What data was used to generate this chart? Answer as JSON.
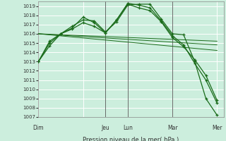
{
  "xlabel": "Pression niveau de la mer( hPa )",
  "ylim": [
    1007,
    1019.5
  ],
  "yticks": [
    1007,
    1008,
    1009,
    1010,
    1011,
    1012,
    1013,
    1014,
    1015,
    1016,
    1017,
    1018,
    1019
  ],
  "day_labels": [
    "Dim",
    "Jeu",
    "Lun",
    "Mar",
    "Mer"
  ],
  "day_positions": [
    0.0,
    3.0,
    4.0,
    6.0,
    8.0
  ],
  "bg_color": "#cceedd",
  "grid_color": "#ffffff",
  "line_color": "#1a6b1a",
  "series1_x": [
    0,
    0.5,
    1.0,
    1.5,
    2.0,
    2.5,
    3.0,
    3.5,
    4.0,
    4.5,
    5.0,
    5.5,
    6.0,
    6.5,
    7.0,
    7.5,
    8.0
  ],
  "series1_y": [
    1013.0,
    1014.7,
    1016.0,
    1016.8,
    1017.5,
    1017.4,
    1016.2,
    1017.3,
    1019.1,
    1019.2,
    1019.2,
    1017.6,
    1016.0,
    1015.9,
    1013.0,
    1009.0,
    1007.2
  ],
  "series2_x": [
    0,
    0.5,
    1.0,
    1.5,
    2.0,
    2.5,
    3.0,
    3.5,
    4.0,
    4.5,
    5.0,
    5.5,
    6.0,
    6.5,
    7.0,
    7.5,
    8.0
  ],
  "series2_y": [
    1013.0,
    1015.0,
    1016.0,
    1016.6,
    1017.8,
    1017.2,
    1016.1,
    1017.5,
    1019.3,
    1019.1,
    1018.8,
    1017.4,
    1015.8,
    1014.8,
    1012.8,
    1011.0,
    1008.5
  ],
  "series3_x": [
    0,
    0.5,
    1.0,
    1.5,
    2.0,
    2.5,
    3.0,
    3.5,
    4.0,
    4.5,
    5.0,
    5.5,
    6.0,
    6.5,
    7.0,
    7.5,
    8.0
  ],
  "series3_y": [
    1013.0,
    1015.2,
    1016.0,
    1016.5,
    1017.2,
    1016.8,
    1016.1,
    1017.5,
    1019.2,
    1018.8,
    1018.5,
    1017.3,
    1015.6,
    1014.6,
    1013.2,
    1011.5,
    1008.8
  ],
  "trend1_x": [
    0.0,
    8.0
  ],
  "trend1_y": [
    1016.0,
    1015.2
  ],
  "trend2_x": [
    0.0,
    8.0
  ],
  "trend2_y": [
    1016.0,
    1014.8
  ],
  "trend3_x": [
    0.0,
    8.0
  ],
  "trend3_y": [
    1016.0,
    1014.2
  ],
  "vline_positions": [
    3.0,
    4.0,
    6.0
  ],
  "xmin": 0.0,
  "xmax": 8.3
}
